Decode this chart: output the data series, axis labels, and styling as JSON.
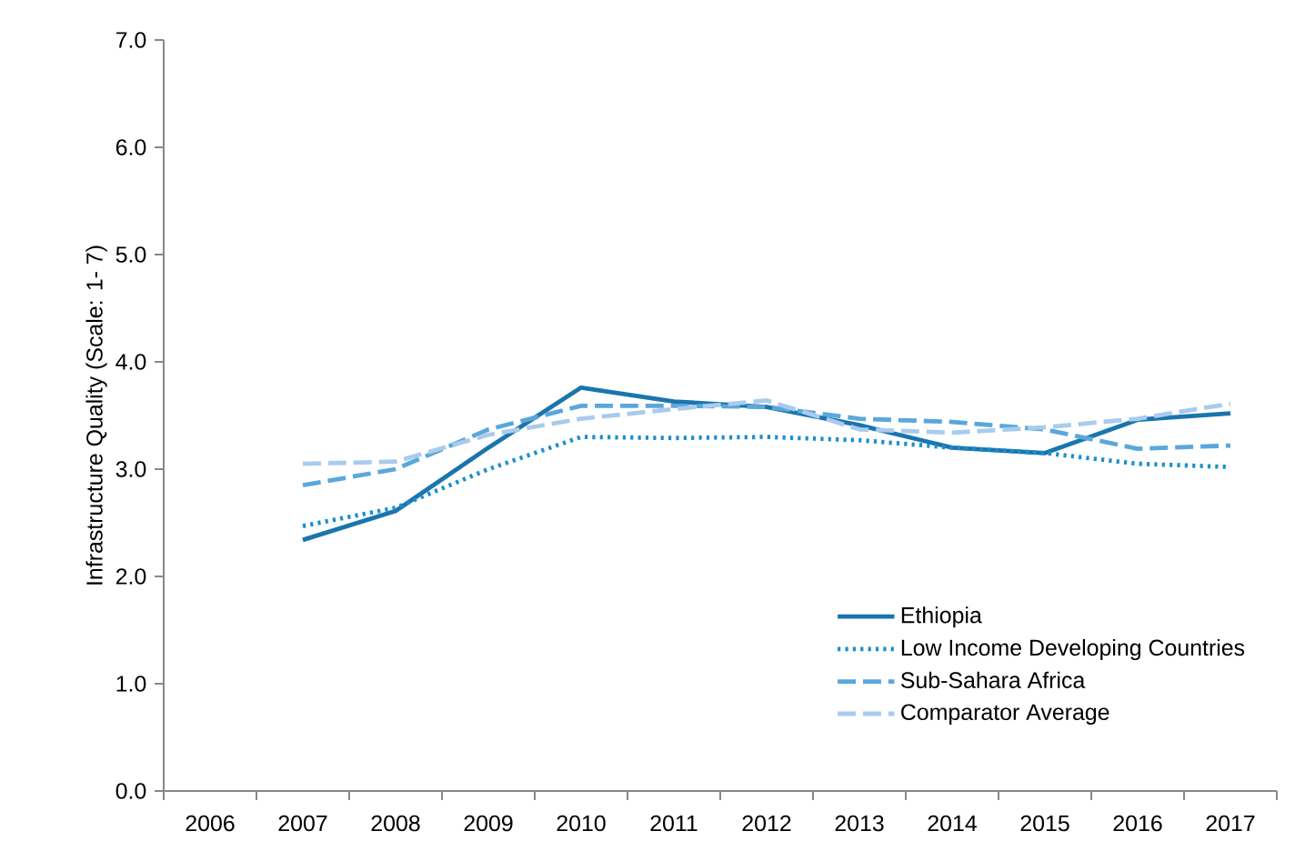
{
  "chart_data": {
    "type": "line",
    "ylabel": "Infrastructure Quality (Scale: 1- 7)",
    "categories": [
      "2006",
      "2007",
      "2008",
      "2009",
      "2010",
      "2011",
      "2012",
      "2013",
      "2014",
      "2015",
      "2016",
      "2017"
    ],
    "series": [
      {
        "name": "Ethiopia",
        "color": "#1a75ad",
        "line_style": "solid",
        "values": [
          null,
          2.34,
          2.61,
          3.2,
          3.76,
          3.63,
          3.58,
          3.41,
          3.2,
          3.15,
          3.46,
          3.52
        ]
      },
      {
        "name": "Low Income Developing Countries",
        "color": "#1a8fcc",
        "line_style": "dotted",
        "values": [
          null,
          2.47,
          2.64,
          3.0,
          3.3,
          3.29,
          3.3,
          3.27,
          3.2,
          3.15,
          3.05,
          3.02
        ]
      },
      {
        "name": "Sub-Sahara Africa",
        "color": "#5aa7dc",
        "line_style": "dashed",
        "values": [
          null,
          2.85,
          3.0,
          3.37,
          3.59,
          3.59,
          3.58,
          3.47,
          3.44,
          3.37,
          3.19,
          3.22
        ]
      },
      {
        "name": "Comparator Average",
        "color": "#a9cbed",
        "line_style": "dashed",
        "values": [
          null,
          3.05,
          3.07,
          3.32,
          3.47,
          3.56,
          3.64,
          3.37,
          3.34,
          3.39,
          3.47,
          3.61
        ]
      }
    ],
    "ylim": [
      0,
      7
    ],
    "yticks": [
      {
        "value": 0,
        "label": "0.0"
      },
      {
        "value": 1,
        "label": "1.0"
      },
      {
        "value": 2,
        "label": "2.0"
      },
      {
        "value": 3,
        "label": "3.0"
      },
      {
        "value": 4,
        "label": "4.0"
      },
      {
        "value": 5,
        "label": "5.0"
      },
      {
        "value": 6,
        "label": "6.0"
      },
      {
        "value": 7,
        "label": "7.0"
      }
    ],
    "grid": false,
    "legend": "bottom right",
    "marker": "none"
  }
}
